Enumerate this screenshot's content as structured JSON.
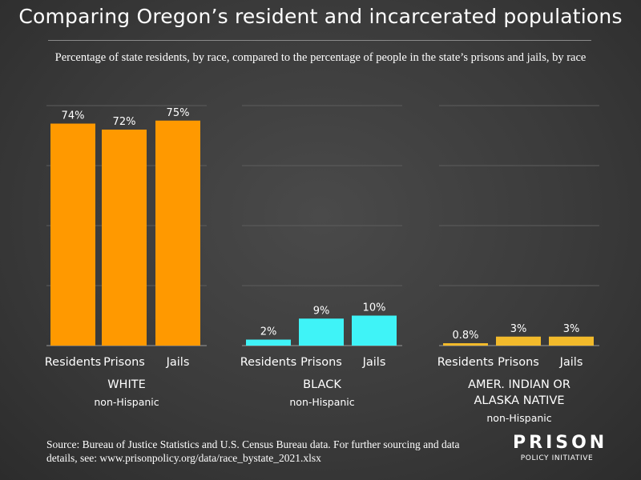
{
  "title": "Comparing Oregon’s resident and incarcerated populations",
  "subtitle": "Percentage of state residents, by race, compared to the percentage of people in the state’s prisons and jails, by race",
  "source_text": "Source: Bureau of Justice Statistics and U.S. Census Bureau data. For further sourcing and data details, see: www.prisonpolicy.org/data/race_bystate_2021.xlsx",
  "logo": {
    "main": "PRISON",
    "sub": "POLICY INITIATIVE"
  },
  "chart_data": {
    "type": "bar",
    "categories": [
      "Residents",
      "Prisons",
      "Jails"
    ],
    "ylim": [
      0,
      80
    ],
    "grid": true,
    "groups": [
      {
        "name_lines": [
          "WHITE"
        ],
        "note": "non-Hispanic",
        "color": "#FF9900",
        "values": [
          74,
          72,
          75
        ],
        "labels": [
          "74%",
          "72%",
          "75%"
        ]
      },
      {
        "name_lines": [
          "BLACK"
        ],
        "note": "non-Hispanic",
        "color": "#3FF3F7",
        "values": [
          2,
          9,
          10
        ],
        "labels": [
          "2%",
          "9%",
          "10%"
        ]
      },
      {
        "name_lines": [
          "AMER. INDIAN OR",
          "ALASKA NATIVE"
        ],
        "note": "non-Hispanic",
        "color": "#F2BA2B",
        "values": [
          0.8,
          3,
          3
        ],
        "labels": [
          "0.8%",
          "3%",
          "3%"
        ]
      }
    ]
  }
}
